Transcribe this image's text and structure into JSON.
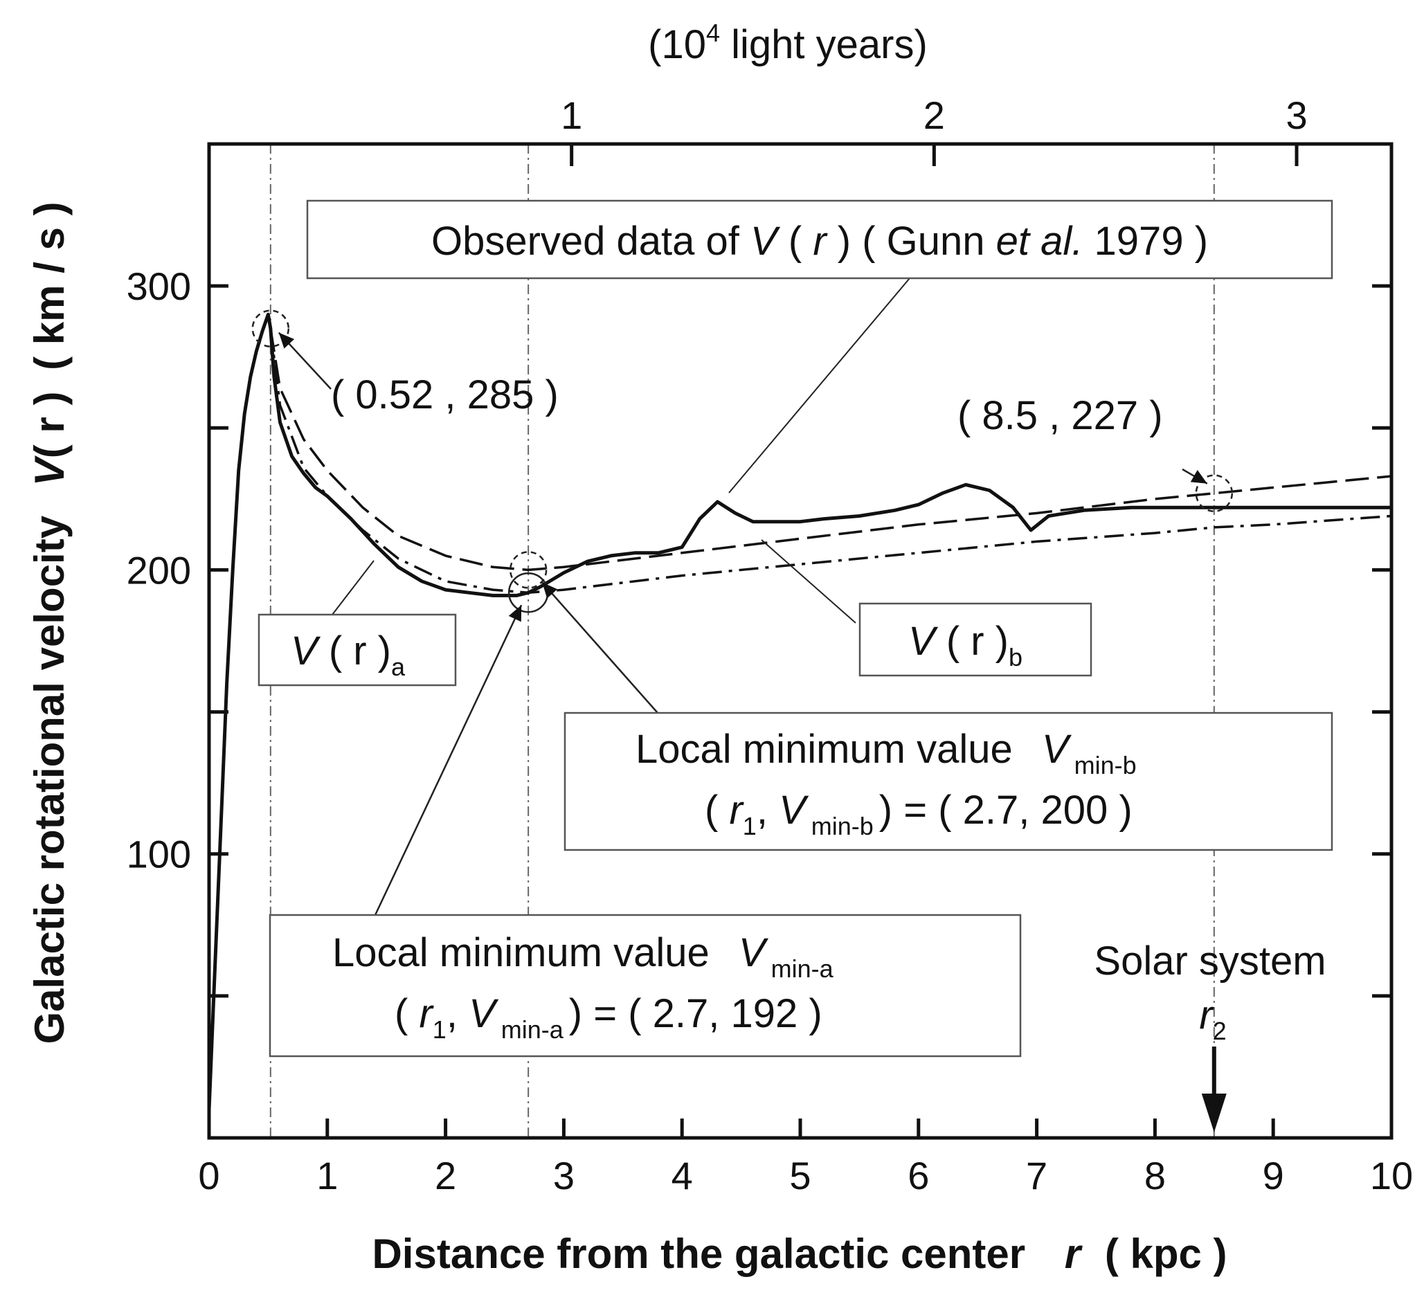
{
  "chart_data": {
    "type": "line",
    "x": {
      "label_prefix": "Distance from the galactic center",
      "label_var": "r",
      "label_unit": "( kpc )",
      "range": [
        0,
        10
      ],
      "ticks": [
        "0",
        "1",
        "2",
        "3",
        "4",
        "5",
        "6",
        "7",
        "8",
        "9",
        "10"
      ]
    },
    "x_top": {
      "label_prefix": "(10",
      "label_sup": "4",
      "label_suffix": " light years)",
      "ticks": [
        "1",
        "2",
        "3"
      ],
      "tick_positions_kpc": [
        3.066,
        6.132,
        9.198
      ]
    },
    "y": {
      "label_prefix": "Galactic rotational velocity",
      "label_var": "V",
      "label_var_arg": "( r )",
      "label_unit": "( km / s )",
      "range": [
        0,
        350
      ],
      "ticks": [
        "100",
        "200",
        "300"
      ],
      "tick_values": [
        100,
        200,
        300
      ]
    },
    "series": [
      {
        "style": "solid",
        "x": [
          0.0,
          0.05,
          0.1,
          0.15,
          0.2,
          0.25,
          0.3,
          0.35,
          0.4,
          0.45,
          0.5,
          0.52,
          0.55,
          0.6,
          0.7,
          0.8,
          0.9,
          1.0,
          1.2,
          1.4,
          1.6,
          1.8,
          2.0,
          2.2,
          2.4,
          2.6,
          2.7,
          2.8,
          3.0,
          3.2,
          3.4,
          3.6,
          3.8,
          4.0,
          4.15,
          4.3,
          4.45,
          4.6,
          4.8,
          5.0,
          5.2,
          5.5,
          5.8,
          6.0,
          6.2,
          6.4,
          6.6,
          6.8,
          6.95,
          7.1,
          7.4,
          7.8,
          8.2,
          8.5,
          9.0,
          9.5,
          10.0
        ],
        "y": [
          10,
          60,
          110,
          160,
          200,
          235,
          255,
          268,
          277,
          284,
          290,
          285,
          268,
          252,
          240,
          234,
          229,
          226,
          218,
          209,
          201,
          196,
          193,
          192,
          191,
          191,
          192,
          194,
          199,
          203,
          205,
          206,
          206,
          208,
          218,
          224,
          220,
          217,
          217,
          217,
          218,
          219,
          221,
          223,
          227,
          230,
          228,
          222,
          214,
          219,
          221,
          222,
          222,
          222,
          222,
          222,
          222
        ]
      },
      {
        "name": "V ( r )a",
        "style": "dash-dot",
        "x": [
          0.52,
          0.6,
          0.8,
          1.0,
          1.3,
          1.6,
          2.0,
          2.4,
          2.7,
          3.0,
          4.0,
          5.0,
          6.0,
          7.0,
          8.0,
          8.5,
          9.0,
          10.0
        ],
        "y": [
          285,
          258,
          236,
          226,
          214,
          204,
          196,
          193,
          192,
          193,
          198,
          202,
          206,
          210,
          213,
          215,
          216,
          219
        ]
      },
      {
        "name": "V ( r )b",
        "style": "dash",
        "x": [
          0.52,
          0.6,
          0.8,
          1.0,
          1.3,
          1.6,
          2.0,
          2.4,
          2.7,
          3.0,
          4.0,
          5.0,
          6.0,
          7.0,
          8.0,
          8.5,
          9.0,
          10.0
        ],
        "y": [
          285,
          264,
          246,
          235,
          222,
          212,
          205,
          201,
          200,
          201,
          206,
          211,
          216,
          220,
          225,
          227,
          229,
          233
        ]
      }
    ],
    "reference_lines_x": [
      0.52,
      2.7,
      8.5
    ],
    "points": [
      {
        "label": "( 0.52 , 285 )",
        "x": 0.52,
        "y": 285
      },
      {
        "label": "( 8.5 , 227 )",
        "x": 8.5,
        "y": 227
      },
      {
        "x": 2.7,
        "y": 200
      },
      {
        "x": 2.7,
        "y": 192
      }
    ],
    "annotations": {
      "observed": {
        "prefix": "Observed data of",
        "var": "V",
        "arg_open": "(",
        "arg_var": "r",
        "arg_close": ")",
        "src_open": "( Gunn",
        "src_etal": "et al.",
        "src_close": "1979 )"
      },
      "va": {
        "var": "V",
        "arg": "( r )",
        "sub": "a"
      },
      "vb": {
        "var": "V",
        "arg": "( r )",
        "sub": "b"
      },
      "min_b": {
        "line1": "Local minimum value",
        "var": "V",
        "sub": "min-b",
        "pair_open": "(",
        "pair_r": "r",
        "pair_r_sub": "1",
        "pair_comma": ",",
        "pair_v": "V",
        "pair_v_sub": "min-b",
        "pair_close": ") = ( 2.7, 200 )"
      },
      "min_a": {
        "line1": "Local minimum value",
        "var": "V",
        "sub": "min-a",
        "pair_open": "(",
        "pair_r": "r",
        "pair_r_sub": "1",
        "pair_comma": ",",
        "pair_v": "V",
        "pair_v_sub": "min-a",
        "pair_close": ") = ( 2.7, 192 )"
      },
      "solar": {
        "label": "Solar system",
        "r_var": "r",
        "r_sub": "2"
      }
    },
    "grid": false
  }
}
